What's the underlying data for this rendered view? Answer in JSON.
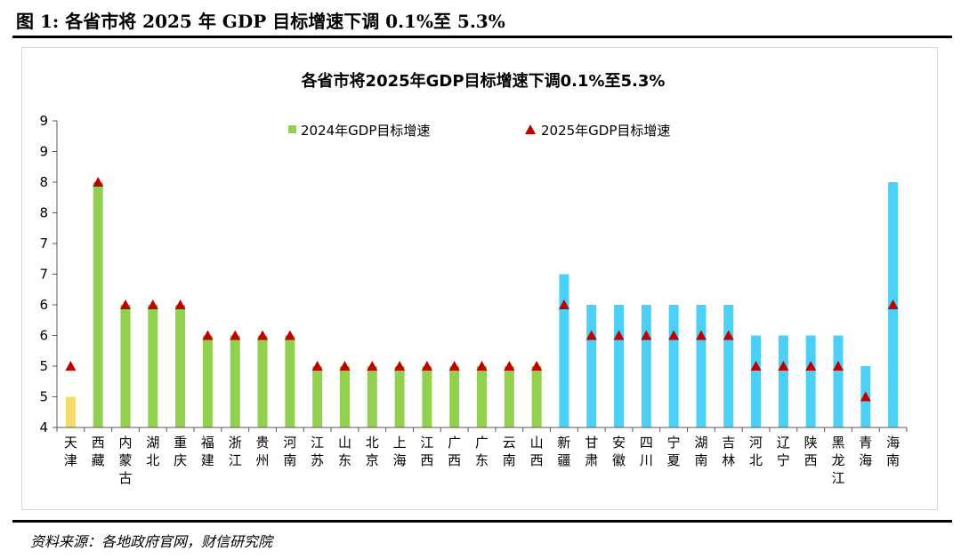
{
  "figure_title": "图 1:  各省市将 2025 年 GDP 目标增速下调 0.1%至 5.3%",
  "source_note": "资料来源：各地政府官网，财信研究院",
  "colors": {
    "series_2024_green": "#92d050",
    "series_2024_blue": "#4dd0f5",
    "series_2024_tianjin": "#f7d86a",
    "series_2025_marker": "#c00000",
    "axis": "#595959",
    "frame": "#d9d9d9"
  },
  "chart_data": {
    "type": "bar",
    "title": "各省市将2025年GDP目标增速下调0.1%至5.3%",
    "xlabel": "",
    "ylabel": "",
    "ylim": [
      4,
      9
    ],
    "y_ticks": [
      4,
      4.5,
      5,
      5.5,
      6,
      6.5,
      7,
      7.5,
      8,
      8.5,
      9
    ],
    "y_tick_labels": [
      "4",
      "5",
      "5",
      "6",
      "6",
      "7",
      "7",
      "8",
      "8",
      "9",
      "9"
    ],
    "legend": {
      "placement": "top-center"
    },
    "categories": [
      "天津",
      "西藏",
      "内蒙古",
      "湖北",
      "重庆",
      "福建",
      "浙江",
      "贵州",
      "河南",
      "江苏",
      "山东",
      "北京",
      "上海",
      "江西",
      "广西",
      "广东",
      "云南",
      "山西",
      "新疆",
      "甘肃",
      "安徽",
      "四川",
      "宁夏",
      "湖南",
      "吉林",
      "河北",
      "辽宁",
      "陕西",
      "黑龙江",
      "青海",
      "海南"
    ],
    "bar_color_groups": [
      "yellow",
      "green",
      "green",
      "green",
      "green",
      "green",
      "green",
      "green",
      "green",
      "green",
      "green",
      "green",
      "green",
      "green",
      "green",
      "green",
      "green",
      "green",
      "blue",
      "blue",
      "blue",
      "blue",
      "blue",
      "blue",
      "blue",
      "blue",
      "blue",
      "blue",
      "blue",
      "blue",
      "blue"
    ],
    "series": [
      {
        "name": "2024年GDP目标增速",
        "kind": "bar",
        "values": [
          4.5,
          8,
          6,
          6,
          6,
          5.5,
          5.5,
          5.5,
          5.5,
          5,
          5,
          5,
          5,
          5,
          5,
          5,
          5,
          5,
          6.5,
          6,
          6,
          6,
          6,
          6,
          6,
          5.5,
          5.5,
          5.5,
          5.5,
          5,
          8
        ]
      },
      {
        "name": "2025年GDP目标增速",
        "kind": "marker",
        "values": [
          5,
          8,
          6,
          6,
          6,
          5.5,
          5.5,
          5.5,
          5.5,
          5,
          5,
          5,
          5,
          5,
          5,
          5,
          5,
          5,
          6,
          5.5,
          5.5,
          5.5,
          5.5,
          5.5,
          5.5,
          5,
          5,
          5,
          5,
          4.5,
          6
        ]
      }
    ]
  }
}
